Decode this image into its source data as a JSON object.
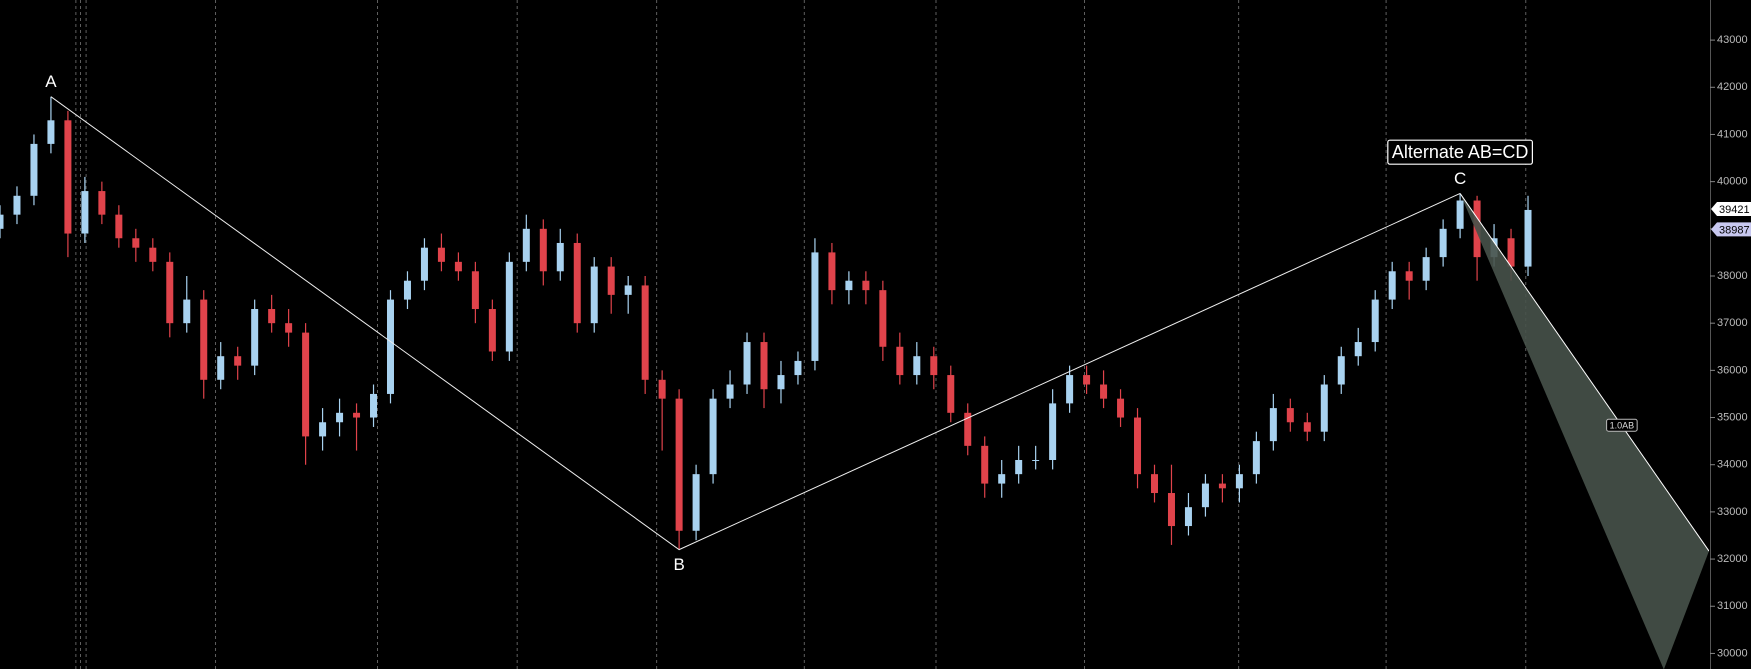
{
  "chart_data": {
    "type": "candlestick",
    "up_color": "#a8d2f0",
    "down_color": "#e0434b",
    "open": [
      39000,
      39300,
      39700,
      40800,
      41300,
      38900,
      39800,
      39300,
      38800,
      38600,
      38300,
      37000,
      37500,
      35800,
      36300,
      36100,
      37300,
      37000,
      36800,
      34600,
      34900,
      35100,
      35000,
      35500,
      37500,
      37900,
      38600,
      38300,
      38100,
      37300,
      36400,
      38300,
      39000,
      38100,
      38700,
      37000,
      38200,
      37600,
      37800,
      35800,
      35400,
      32600,
      33800,
      35400,
      35700,
      36600,
      35600,
      35900,
      36200,
      38500,
      37700,
      37900,
      37700,
      36500,
      35900,
      36300,
      35900,
      35100,
      34400,
      33600,
      33800,
      34100,
      34100,
      35300,
      35900,
      35700,
      35400,
      35000,
      33800,
      33400,
      32700,
      33100,
      33600,
      33500,
      33800,
      34500,
      35200,
      34900,
      34700,
      35700,
      36300,
      36600,
      37500,
      38100,
      37900,
      38400,
      39000,
      39600,
      38400,
      38800,
      38200
    ],
    "high": [
      39500,
      39900,
      41000,
      41800,
      41500,
      40100,
      40000,
      39500,
      39000,
      38800,
      38500,
      38000,
      37700,
      36600,
      36500,
      37500,
      37600,
      37300,
      37000,
      35200,
      35400,
      35300,
      35700,
      37700,
      38100,
      38800,
      38900,
      38500,
      38300,
      37500,
      38500,
      39300,
      39200,
      39000,
      38900,
      38400,
      38400,
      38000,
      38000,
      36000,
      35600,
      34000,
      35600,
      36000,
      36800,
      36800,
      36200,
      36400,
      38800,
      38700,
      38100,
      38100,
      37900,
      36800,
      36600,
      36500,
      36100,
      35300,
      34600,
      34100,
      34400,
      34400,
      35600,
      36100,
      36100,
      36000,
      35600,
      35200,
      34000,
      34000,
      33400,
      33800,
      33800,
      34000,
      34700,
      35500,
      35400,
      35100,
      35900,
      36500,
      36900,
      37700,
      38300,
      38300,
      38600,
      39200,
      39750,
      39700,
      39100,
      39000,
      39700
    ],
    "low": [
      38800,
      39100,
      39500,
      40600,
      38400,
      38700,
      39100,
      38600,
      38300,
      38100,
      36700,
      36800,
      35400,
      35600,
      35800,
      35900,
      36800,
      36500,
      34000,
      34300,
      34600,
      34300,
      34800,
      35300,
      37300,
      37700,
      38100,
      37900,
      37000,
      36200,
      36200,
      38100,
      37800,
      37900,
      36800,
      36800,
      37200,
      37200,
      35500,
      34300,
      32200,
      32400,
      33600,
      35200,
      35500,
      35200,
      35300,
      35700,
      36000,
      37400,
      37400,
      37400,
      36200,
      35700,
      35700,
      35600,
      34900,
      34200,
      33300,
      33300,
      33600,
      33900,
      33900,
      35100,
      35500,
      35200,
      34800,
      33500,
      33200,
      32300,
      32500,
      32900,
      33200,
      33200,
      33600,
      34300,
      34700,
      34500,
      34500,
      35500,
      36100,
      36400,
      37300,
      37500,
      37700,
      38200,
      38800,
      37900,
      38200,
      37900,
      38000
    ],
    "close": [
      39300,
      39700,
      40800,
      41300,
      38900,
      39800,
      39300,
      38800,
      38600,
      38300,
      37000,
      37500,
      35800,
      36300,
      36100,
      37300,
      37000,
      36800,
      34600,
      34900,
      35100,
      35000,
      35500,
      37500,
      37900,
      38600,
      38300,
      38100,
      37300,
      36400,
      38300,
      39000,
      38100,
      38700,
      37000,
      38200,
      37600,
      37800,
      35800,
      35400,
      32600,
      33800,
      35400,
      35700,
      36600,
      35600,
      35900,
      36200,
      38500,
      37700,
      37900,
      37700,
      36500,
      35900,
      36300,
      35900,
      35100,
      34400,
      33600,
      33800,
      34100,
      34100,
      35300,
      35900,
      35700,
      35400,
      35000,
      33800,
      33400,
      32700,
      33100,
      33600,
      33500,
      33800,
      34500,
      35200,
      34900,
      34700,
      35700,
      36300,
      36600,
      37500,
      38100,
      37900,
      38400,
      39000,
      39600,
      38400,
      38800,
      38200,
      39400
    ],
    "xlim": [
      0,
      100.66
    ],
    "ylim": [
      29670,
      43850
    ],
    "yticks": [
      30000,
      31000,
      32000,
      33000,
      34000,
      35000,
      36000,
      37000,
      38000,
      39000,
      40000,
      41000,
      42000,
      43000
    ],
    "separators": [
      4.47,
      4.74,
      5.07,
      12.7,
      22.24,
      30.46,
      38.68,
      47.37,
      55.13,
      63.88,
      72.96,
      81.64,
      89.87
    ],
    "pattern": {
      "name": "Alternate AB=CD",
      "labels": [
        "A",
        "B",
        "C"
      ],
      "x": [
        3,
        40,
        86
      ],
      "values": [
        41800,
        32200,
        39750
      ]
    },
    "projection": {
      "label": "1.0AB",
      "x": [
        100.66,
        98
      ],
      "values": [
        32170,
        29660
      ],
      "color": "#47524a"
    },
    "price_markers": [
      {
        "value": 39421,
        "color": "#ffffff"
      },
      {
        "value": 38987,
        "color": "#c8c8f0"
      }
    ]
  }
}
